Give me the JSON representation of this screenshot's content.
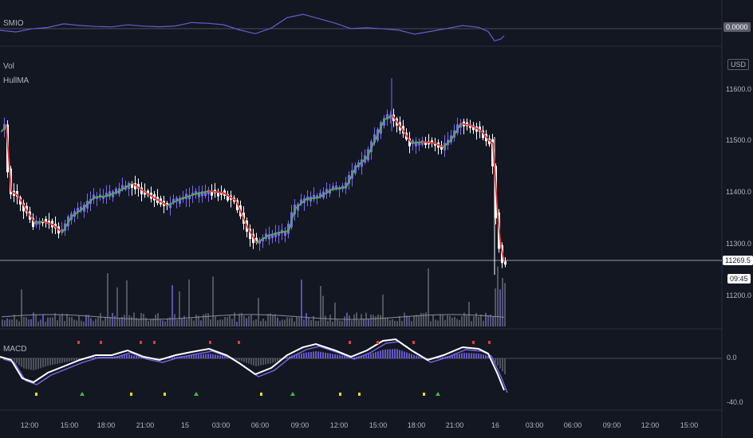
{
  "panes": {
    "smio": {
      "label": "SMIO",
      "value_badge": "0.0000"
    },
    "main": {
      "vol_label": "Vol",
      "hullma_label": "HullMA",
      "currency_badge": "USD"
    },
    "macd": {
      "label": "MACD"
    }
  },
  "price_axis": {
    "labels": [
      "11600.0",
      "11500.0",
      "11400.0",
      "11300.0",
      "11200.0"
    ],
    "last_price": "11269.5",
    "countdown": "09:45"
  },
  "macd_axis": {
    "labels": [
      "0.0",
      "-40.0"
    ]
  },
  "time_axis": {
    "labels": [
      "12:00",
      "15:00",
      "18:00",
      "21:00",
      "15",
      "03:00",
      "06:00",
      "09:00",
      "12:00",
      "15:00",
      "18:00",
      "21:00",
      "16",
      "03:00",
      "06:00",
      "09:00",
      "12:00",
      "15:00"
    ]
  },
  "colors": {
    "background": "#131722",
    "up_candle": "#7b68ee",
    "down_candle": "#ffffff",
    "hull_up": "#4caf50",
    "hull_down": "#e53935",
    "smio_line": "#6a5acd",
    "volume_bar": "#5d606b",
    "volume_highlight": "#6a5acd",
    "macd_line": "#ffffff",
    "signal_line": "#7b68ee",
    "grid": "#2a2e39"
  }
}
